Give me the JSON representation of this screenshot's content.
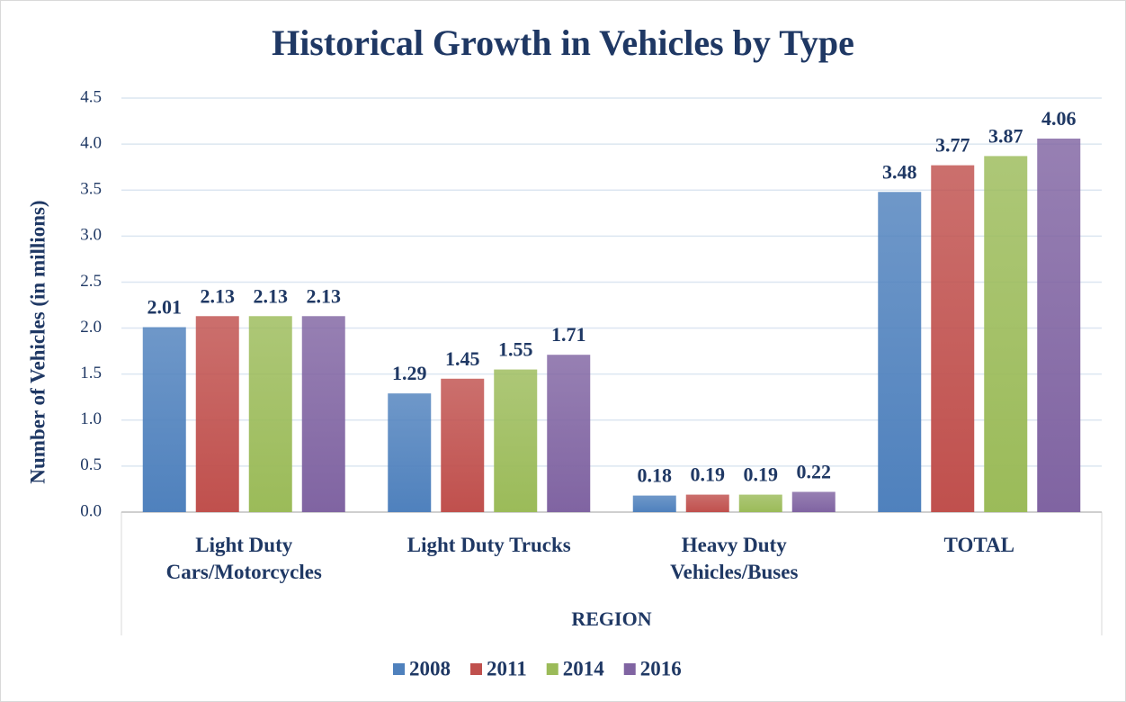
{
  "chart_data": {
    "type": "bar",
    "title": "Historical Growth in Vehicles by Type",
    "y_label": "Number of Vehicles (in millions)",
    "x_label": "REGION",
    "categories": [
      "Light Duty Cars/Motorcycles",
      "Light Duty Trucks",
      "Heavy Duty Vehicles/Buses",
      "TOTAL"
    ],
    "series": [
      {
        "name": "2008",
        "color": "#4f81bd",
        "values": [
          2.01,
          1.29,
          0.18,
          3.48
        ]
      },
      {
        "name": "2011",
        "color": "#c0504d",
        "values": [
          2.13,
          1.45,
          0.19,
          3.77
        ]
      },
      {
        "name": "2014",
        "color": "#9bbb59",
        "values": [
          2.13,
          1.55,
          0.19,
          3.87
        ]
      },
      {
        "name": "2016",
        "color": "#8064a2",
        "values": [
          2.13,
          1.71,
          0.22,
          4.06
        ]
      }
    ],
    "ylim": [
      0,
      4.5
    ],
    "yticks": [
      {
        "value": 0,
        "label": "0.0"
      },
      0.5,
      {
        "value": 1,
        "label": "1.0"
      },
      1.5,
      {
        "value": 2,
        "label": "2.0"
      },
      2.5,
      {
        "value": 3,
        "label": "3.0"
      },
      3.5,
      {
        "value": 4,
        "label": "4.0"
      },
      4.5
    ],
    "grid": true,
    "legend": "bottom"
  }
}
